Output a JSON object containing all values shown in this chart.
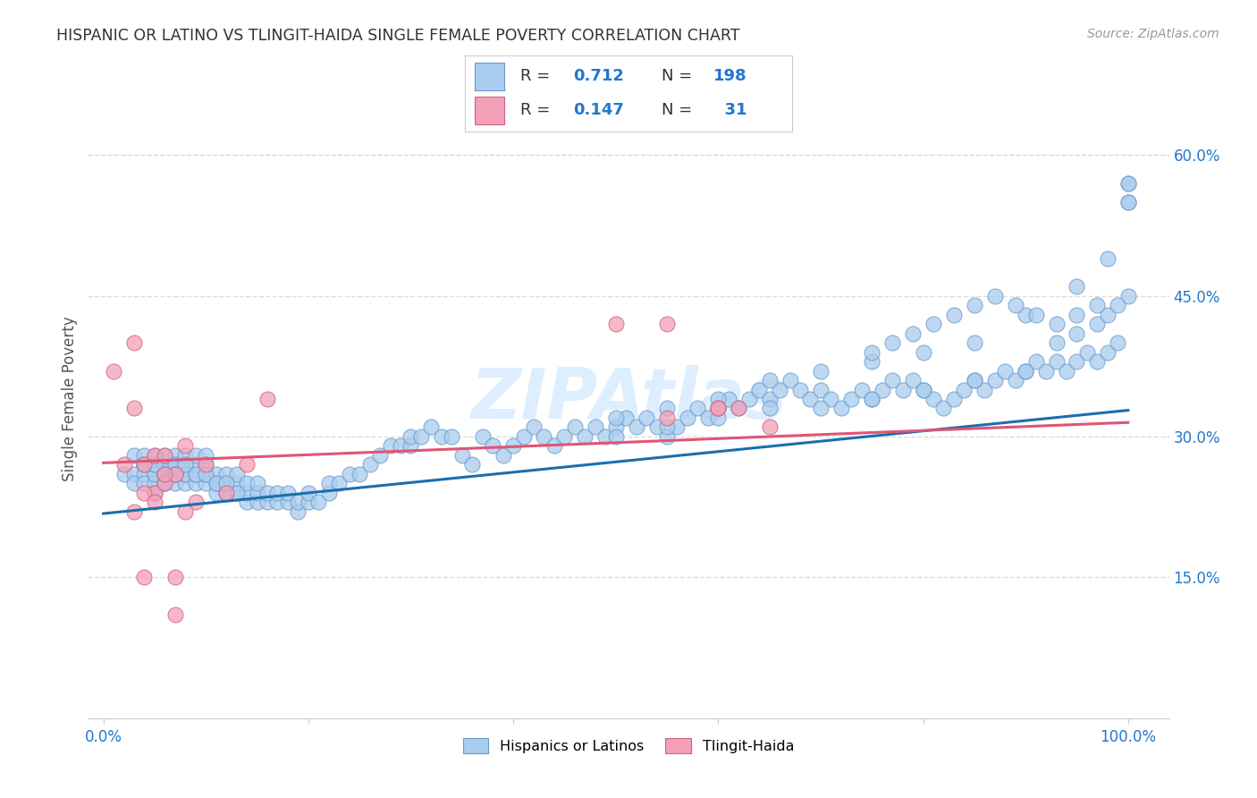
{
  "title": "HISPANIC OR LATINO VS TLINGIT-HAIDA SINGLE FEMALE POVERTY CORRELATION CHART",
  "source": "Source: ZipAtlas.com",
  "ylabel": "Single Female Poverty",
  "x_ticks": [
    0.0,
    0.2,
    0.4,
    0.6,
    0.8,
    1.0
  ],
  "y_tick_labels_right": [
    "15.0%",
    "30.0%",
    "45.0%",
    "60.0%"
  ],
  "y_tick_positions_right": [
    0.15,
    0.3,
    0.45,
    0.6
  ],
  "xlim": [
    -0.015,
    1.04
  ],
  "ylim": [
    0.0,
    0.68
  ],
  "title_color": "#333333",
  "source_color": "#999999",
  "ylabel_color": "#555555",
  "blue_line_color": "#1a6faf",
  "pink_line_color": "#e05575",
  "blue_scatter_color": "#aaccee",
  "blue_scatter_edge": "#6699cc",
  "pink_scatter_color": "#f4a0b8",
  "pink_scatter_edge": "#d06080",
  "watermark_color": "#ddeeff",
  "grid_color": "#dddddd",
  "background_color": "#ffffff",
  "legend_text_color": "#333333",
  "legend_N_color": "#2277cc",
  "blue_line_y0": 0.218,
  "blue_line_y1": 0.328,
  "pink_line_y0": 0.272,
  "pink_line_y1": 0.315,
  "blue_scatter_x": [
    0.02,
    0.03,
    0.03,
    0.03,
    0.04,
    0.04,
    0.04,
    0.04,
    0.05,
    0.05,
    0.05,
    0.05,
    0.05,
    0.05,
    0.05,
    0.06,
    0.06,
    0.06,
    0.06,
    0.06,
    0.06,
    0.06,
    0.07,
    0.07,
    0.07,
    0.07,
    0.07,
    0.07,
    0.08,
    0.08,
    0.08,
    0.08,
    0.08,
    0.09,
    0.09,
    0.09,
    0.09,
    0.1,
    0.1,
    0.1,
    0.1,
    0.11,
    0.11,
    0.11,
    0.12,
    0.12,
    0.12,
    0.13,
    0.13,
    0.13,
    0.14,
    0.14,
    0.14,
    0.15,
    0.15,
    0.15,
    0.16,
    0.16,
    0.17,
    0.17,
    0.18,
    0.18,
    0.19,
    0.19,
    0.2,
    0.2,
    0.21,
    0.22,
    0.22,
    0.23,
    0.24,
    0.25,
    0.26,
    0.27,
    0.28,
    0.29,
    0.3,
    0.3,
    0.31,
    0.32,
    0.33,
    0.34,
    0.35,
    0.36,
    0.37,
    0.38,
    0.39,
    0.4,
    0.41,
    0.42,
    0.43,
    0.44,
    0.45,
    0.46,
    0.47,
    0.48,
    0.49,
    0.5,
    0.51,
    0.52,
    0.53,
    0.54,
    0.55,
    0.56,
    0.57,
    0.58,
    0.59,
    0.6,
    0.61,
    0.62,
    0.63,
    0.64,
    0.65,
    0.66,
    0.67,
    0.68,
    0.69,
    0.7,
    0.71,
    0.72,
    0.73,
    0.74,
    0.75,
    0.76,
    0.77,
    0.78,
    0.79,
    0.8,
    0.81,
    0.82,
    0.83,
    0.84,
    0.85,
    0.86,
    0.87,
    0.88,
    0.89,
    0.9,
    0.91,
    0.92,
    0.93,
    0.94,
    0.95,
    0.96,
    0.97,
    0.98,
    0.99,
    1.0,
    1.0,
    0.04,
    0.05,
    0.06,
    0.07,
    0.08,
    0.09,
    0.1,
    0.11,
    0.12,
    0.13,
    0.5,
    0.55,
    0.6,
    0.65,
    0.7,
    0.75,
    0.8,
    0.85,
    0.9,
    0.93,
    0.95,
    0.97,
    0.98,
    0.99,
    1.0,
    1.0,
    0.5,
    0.55,
    0.6,
    0.65,
    0.7,
    0.75,
    0.8,
    0.85,
    0.9,
    0.95,
    0.98,
    1.0,
    0.97,
    0.95,
    0.93,
    0.91,
    0.89,
    0.87,
    0.85,
    0.83,
    0.81,
    0.79,
    0.77,
    0.75
  ],
  "blue_scatter_y": [
    0.26,
    0.28,
    0.26,
    0.25,
    0.27,
    0.26,
    0.25,
    0.28,
    0.27,
    0.26,
    0.25,
    0.26,
    0.27,
    0.28,
    0.24,
    0.26,
    0.27,
    0.25,
    0.26,
    0.27,
    0.28,
    0.25,
    0.26,
    0.25,
    0.27,
    0.28,
    0.26,
    0.27,
    0.25,
    0.26,
    0.27,
    0.28,
    0.26,
    0.25,
    0.26,
    0.27,
    0.28,
    0.25,
    0.26,
    0.27,
    0.28,
    0.24,
    0.25,
    0.26,
    0.24,
    0.25,
    0.26,
    0.24,
    0.25,
    0.26,
    0.23,
    0.24,
    0.25,
    0.23,
    0.24,
    0.25,
    0.23,
    0.24,
    0.23,
    0.24,
    0.23,
    0.24,
    0.22,
    0.23,
    0.23,
    0.24,
    0.23,
    0.24,
    0.25,
    0.25,
    0.26,
    0.26,
    0.27,
    0.28,
    0.29,
    0.29,
    0.29,
    0.3,
    0.3,
    0.31,
    0.3,
    0.3,
    0.28,
    0.27,
    0.3,
    0.29,
    0.28,
    0.29,
    0.3,
    0.31,
    0.3,
    0.29,
    0.3,
    0.31,
    0.3,
    0.31,
    0.3,
    0.31,
    0.32,
    0.31,
    0.32,
    0.31,
    0.3,
    0.31,
    0.32,
    0.33,
    0.32,
    0.33,
    0.34,
    0.33,
    0.34,
    0.35,
    0.34,
    0.35,
    0.36,
    0.35,
    0.34,
    0.35,
    0.34,
    0.33,
    0.34,
    0.35,
    0.34,
    0.35,
    0.36,
    0.35,
    0.36,
    0.35,
    0.34,
    0.33,
    0.34,
    0.35,
    0.36,
    0.35,
    0.36,
    0.37,
    0.36,
    0.37,
    0.38,
    0.37,
    0.38,
    0.37,
    0.38,
    0.39,
    0.38,
    0.39,
    0.4,
    0.45,
    0.57,
    0.27,
    0.27,
    0.26,
    0.26,
    0.27,
    0.26,
    0.26,
    0.25,
    0.25,
    0.24,
    0.3,
    0.31,
    0.32,
    0.33,
    0.33,
    0.34,
    0.35,
    0.36,
    0.37,
    0.4,
    0.41,
    0.42,
    0.43,
    0.44,
    0.55,
    0.57,
    0.32,
    0.33,
    0.34,
    0.36,
    0.37,
    0.38,
    0.39,
    0.4,
    0.43,
    0.46,
    0.49,
    0.55,
    0.44,
    0.43,
    0.42,
    0.43,
    0.44,
    0.45,
    0.44,
    0.43,
    0.42,
    0.41,
    0.4,
    0.39
  ],
  "pink_scatter_x": [
    0.01,
    0.02,
    0.03,
    0.03,
    0.04,
    0.04,
    0.05,
    0.05,
    0.06,
    0.06,
    0.07,
    0.07,
    0.08,
    0.09,
    0.1,
    0.12,
    0.14,
    0.16,
    0.5,
    0.55,
    0.55,
    0.6,
    0.6,
    0.62,
    0.65,
    0.07,
    0.08,
    0.04,
    0.05,
    0.03,
    0.06
  ],
  "pink_scatter_y": [
    0.37,
    0.27,
    0.4,
    0.33,
    0.27,
    0.15,
    0.28,
    0.24,
    0.28,
    0.25,
    0.26,
    0.15,
    0.29,
    0.23,
    0.27,
    0.24,
    0.27,
    0.34,
    0.42,
    0.42,
    0.32,
    0.33,
    0.33,
    0.33,
    0.31,
    0.11,
    0.22,
    0.24,
    0.23,
    0.22,
    0.26
  ]
}
